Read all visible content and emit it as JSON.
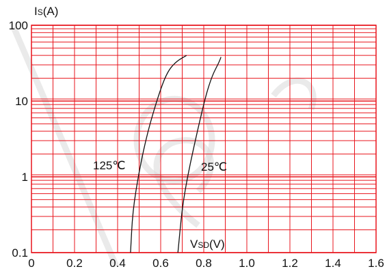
{
  "chart_data": {
    "type": "line",
    "x_scale": "linear",
    "y_scale": "log",
    "xlim": [
      0,
      1.6
    ],
    "ylim": [
      0.1,
      100
    ],
    "x_ticks": [
      "0",
      "0.2",
      "0.4",
      "0.6",
      "0.8",
      "1.0",
      "1.2",
      "1.4",
      "1.6"
    ],
    "x_tick_values": [
      0,
      0.2,
      0.4,
      0.6,
      0.8,
      1.0,
      1.2,
      1.4,
      1.6
    ],
    "y_ticks": [
      "0.1",
      "1",
      "10",
      "100"
    ],
    "y_tick_values": [
      0.1,
      1,
      10,
      100
    ],
    "ylabel": {
      "main": "I",
      "sub": "S",
      "unit": "(A)"
    },
    "xlabel": {
      "main": "V",
      "sub": "SD",
      "unit": "(V)"
    },
    "grid": true,
    "grid_color": "#e8141c",
    "line_color": "#111111",
    "series": [
      {
        "name": "125℃",
        "x": [
          0.46,
          0.47,
          0.5,
          0.54,
          0.59,
          0.63,
          0.67,
          0.72
        ],
        "y": [
          0.1,
          0.35,
          1.2,
          4.0,
          12.0,
          24.0,
          33.0,
          40.0
        ]
      },
      {
        "name": "25℃",
        "x": [
          0.68,
          0.7,
          0.73,
          0.77,
          0.81,
          0.84,
          0.87,
          0.88
        ],
        "y": [
          0.1,
          0.4,
          1.2,
          4.0,
          12.0,
          22.0,
          32.0,
          38.0
        ]
      }
    ]
  }
}
